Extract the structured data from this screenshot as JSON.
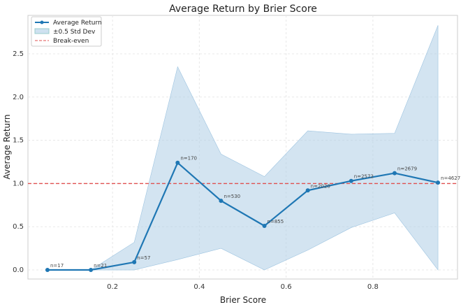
{
  "chart_data": {
    "type": "line",
    "title": "Average Return by Brier Score",
    "xlabel": "Brier Score",
    "ylabel": "Average Return",
    "xlim": [
      0.005,
      0.995
    ],
    "ylim": [
      -0.105,
      2.945
    ],
    "xticks": [
      "0.2",
      "0.4",
      "0.6",
      "0.8"
    ],
    "xtick_values": [
      0.2,
      0.4,
      0.6,
      0.8
    ],
    "yticks": [
      "0.0",
      "0.5",
      "1.0",
      "1.5",
      "2.0",
      "2.5"
    ],
    "ytick_values": [
      0,
      0.5,
      1,
      1.5,
      2,
      2.5
    ],
    "grid": true,
    "legend_position": "top-left",
    "x": [
      0.05,
      0.15,
      0.25,
      0.35,
      0.45,
      0.55,
      0.65,
      0.75,
      0.85,
      0.95
    ],
    "series": [
      {
        "name": "Average Return",
        "color": "#1f77b4",
        "values": [
          0.0,
          0.0,
          0.09,
          1.24,
          0.8,
          0.51,
          0.92,
          1.03,
          1.12,
          1.01
        ],
        "labels": [
          "n=17",
          "n=21",
          "n=57",
          "n=170",
          "n=530",
          "n=855",
          "n=2020",
          "n=2572",
          "n=2679",
          "n=4627"
        ]
      },
      {
        "name": "±0.5 Std Dev",
        "type": "band",
        "color": "#aecde6",
        "upper": [
          0.0,
          0.0,
          0.32,
          2.35,
          1.34,
          1.08,
          1.61,
          1.57,
          1.58,
          2.83
        ],
        "lower": [
          0.0,
          0.0,
          0.0,
          0.12,
          0.25,
          0.0,
          0.23,
          0.49,
          0.66,
          0.0
        ]
      },
      {
        "name": "Break-even",
        "type": "hline",
        "color": "#e05050",
        "value": 1.0
      }
    ]
  }
}
